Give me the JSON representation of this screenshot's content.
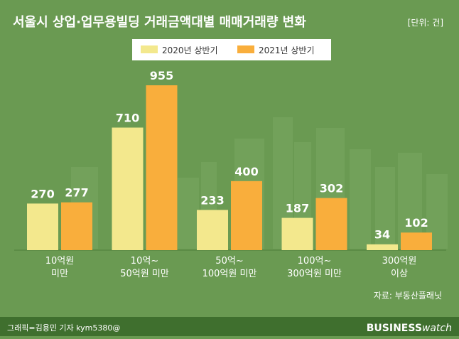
{
  "chart_data": {
    "type": "bar",
    "title": "서울시 상업·업무용빌딩 거래금액대별 매매거래량 변화",
    "unit_note": "[단위: 건]",
    "categories": [
      [
        "10억원",
        "미만"
      ],
      [
        "10억~",
        "50억원 미만"
      ],
      [
        "50억~",
        "100억원 미만"
      ],
      [
        "100억~",
        "300억원 미만"
      ],
      [
        "300억원",
        "이상"
      ]
    ],
    "series": [
      {
        "name": "2020년 상반기",
        "values": [
          270,
          710,
          233,
          187,
          34
        ],
        "color": "#f3e88d"
      },
      {
        "name": "2021년 상반기",
        "values": [
          277,
          955,
          400,
          302,
          102
        ],
        "color": "#f9ae3c"
      }
    ],
    "ylim": [
      0,
      955
    ],
    "legend_position": "top-center",
    "grid": false
  },
  "source": "자료: 부동산플래닛",
  "credit": "그래픽=김용민 기자 kym5380@",
  "brand": {
    "bold": "BUSINESS",
    "light": "watch"
  },
  "colors": {
    "background": "#6a9a52",
    "footer": "#3f6f2e",
    "label": "#ffffff",
    "legend_bg": "#ffffff"
  }
}
